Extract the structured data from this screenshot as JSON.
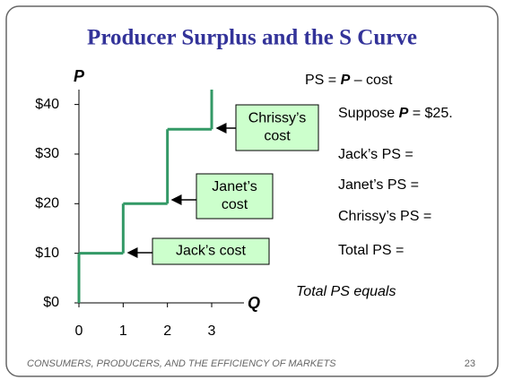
{
  "chart_data": {
    "type": "step",
    "title": "Producer Surplus and the S Curve",
    "y_label": "P",
    "x_label": "Q",
    "x": [
      1,
      2,
      3
    ],
    "values": [
      10,
      20,
      35
    ],
    "color": "#339966",
    "xlim": [
      0,
      3
    ],
    "ylim": [
      0,
      43
    ],
    "xticks": [
      0,
      1,
      2,
      3
    ],
    "yticks": [
      {
        "value": 0,
        "label": "$0"
      },
      {
        "value": 10,
        "label": "$10"
      },
      {
        "value": 20,
        "label": "$20"
      },
      {
        "value": 30,
        "label": "$30"
      },
      {
        "value": 40,
        "label": "$40"
      }
    ],
    "annotations": [
      {
        "lines": [
          "Jack’s cost"
        ]
      },
      {
        "lines": [
          "Janet’s",
          "cost"
        ]
      },
      {
        "lines": [
          "Chrissy’s",
          "cost"
        ]
      }
    ]
  },
  "notes": [
    [
      "PS = ",
      "P",
      " – cost"
    ],
    [
      "Suppose ",
      "P",
      " = $25."
    ],
    [
      "Jack’s PS ="
    ],
    [
      "Janet’s PS ="
    ],
    [
      "Chrissy’s PS ="
    ],
    [
      "Total PS ="
    ]
  ],
  "conclusion": "Total PS equals",
  "footer": "CONSUMERS, PRODUCERS, AND THE EFFICIENCY OF MARKETS",
  "page": "23"
}
